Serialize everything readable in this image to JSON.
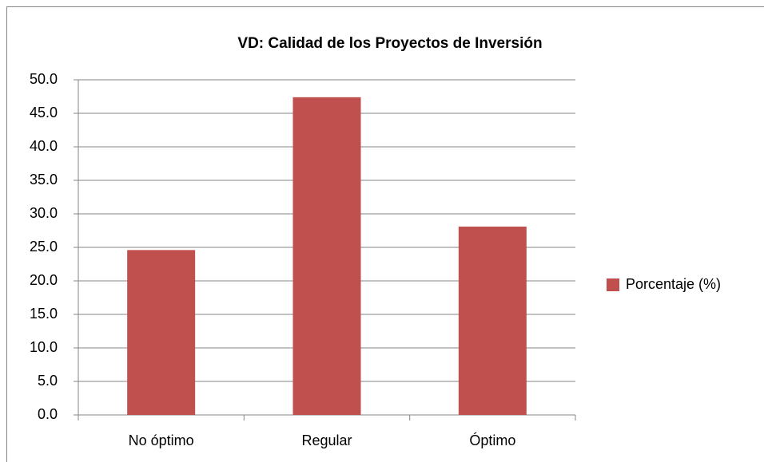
{
  "chart_data": {
    "type": "bar",
    "title": "VD: Calidad de los Proyectos de Inversión",
    "categories": [
      "No óptimo",
      "Regular",
      "Óptimo"
    ],
    "series": [
      {
        "name": "Porcentaje (%)",
        "color": "#c0504d",
        "values": [
          24.6,
          47.4,
          28.1
        ]
      }
    ],
    "ylim": [
      0,
      50
    ],
    "yticks": [
      {
        "value": 0,
        "label": "0.0"
      },
      {
        "value": 5,
        "label": "5.0"
      },
      {
        "value": 10,
        "label": "10.0"
      },
      {
        "value": 15,
        "label": "15.0"
      },
      {
        "value": 20,
        "label": "20.0"
      },
      {
        "value": 25,
        "label": "25.0"
      },
      {
        "value": 30,
        "label": "30.0"
      },
      {
        "value": 35,
        "label": "35.0"
      },
      {
        "value": 40,
        "label": "40.0"
      },
      {
        "value": 45,
        "label": "45.0"
      },
      {
        "value": 50,
        "label": "50.0"
      }
    ],
    "grid": true,
    "legend": "right"
  }
}
